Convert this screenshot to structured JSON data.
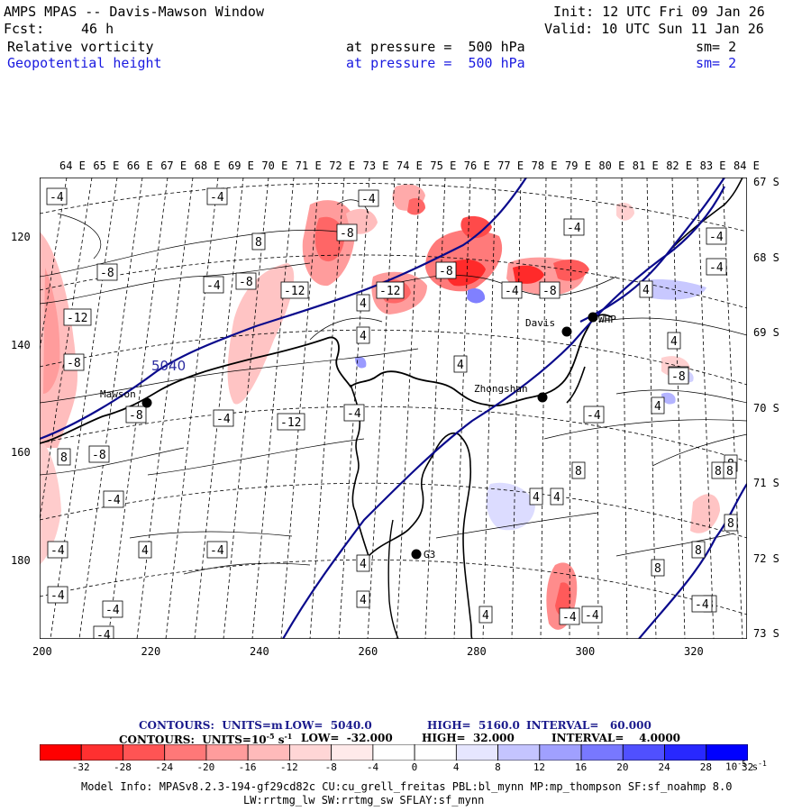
{
  "header": {
    "title": "AMPS MPAS -- Davis-Mawson Window",
    "init": "Init: 12 UTC Fri 09 Jan 26",
    "forecast_label": "Fcst:",
    "forecast_hours": "46 h",
    "valid": "Valid: 10 UTC Sun 11 Jan 26",
    "fields": [
      {
        "name": "Relative vorticity",
        "pressure": "at pressure =  500 hPa",
        "smooth": "sm= 2",
        "color": "#000000"
      },
      {
        "name": "Geopotential height",
        "pressure": "at pressure =  500 hPa",
        "smooth": "sm= 2",
        "color": "#1a1ae0"
      }
    ]
  },
  "map": {
    "longitude_labels": [
      "64 E",
      "65 E",
      "66 E",
      "67 E",
      "68 E",
      "69 E",
      "70 E",
      "71 E",
      "72 E",
      "73 E",
      "74 E",
      "75 E",
      "76 E",
      "77 E",
      "78 E",
      "79 E",
      "80 E",
      "81 E",
      "82 E",
      "83 E",
      "84 E"
    ],
    "latitude_labels": [
      "67 S",
      "68 S",
      "69 S",
      "70 S",
      "71 S",
      "72 S",
      "73 S"
    ],
    "y_ticks": [
      "120",
      "140",
      "160",
      "180"
    ],
    "x_ticks": [
      "200",
      "220",
      "240",
      "260",
      "280",
      "300",
      "320"
    ],
    "stations": [
      {
        "name": "Davis"
      },
      {
        "name": "WHP"
      },
      {
        "name": "Zhongshan"
      },
      {
        "name": "Mawson"
      },
      {
        "name": "G3"
      }
    ],
    "height_contour_label": "5040",
    "vorticity_labels": [
      "-4",
      "-4",
      "-4",
      "-4",
      "-8",
      "-8",
      "-8",
      "-12",
      "-12",
      "-8",
      "-8",
      "-12",
      "-4",
      "-8",
      "-8",
      "-8",
      "-4",
      "-4",
      "-4",
      "-8",
      "-4",
      "-8",
      "-4",
      "-4",
      "-4",
      "-4",
      "-4",
      "-4",
      "-4",
      "-4",
      "-12",
      "-4",
      "4",
      "4",
      "4",
      "4",
      "4",
      "4",
      "4",
      "4",
      "4",
      "4",
      "4",
      "4",
      "8",
      "8",
      "8",
      "8",
      "8",
      "8",
      "8",
      "8",
      "8",
      "-4",
      "8",
      "-4",
      "4",
      "4",
      "4",
      "-8",
      "-4",
      "-8",
      "-4",
      "-4",
      "8",
      "4",
      "4",
      "4",
      "-4",
      "-4"
    ]
  },
  "legend": {
    "height_contours": {
      "label": "CONTOURS:  UNITS=m",
      "low": "LOW=  5040.0",
      "high": "HIGH=  5160.0",
      "interval": "INTERVAL=   60.000"
    },
    "vort_contours": {
      "label": "CONTOURS:  UNITS=10",
      "exp": "-5",
      "unit_tail": "s",
      "unit_exp": "-1",
      "low": "LOW=  -32.000",
      "high": "HIGH=  32.000",
      "interval": "INTERVAL=    4.0000"
    },
    "colorbar_ticks": [
      "-32",
      "-28",
      "-24",
      "-20",
      "-16",
      "-12",
      "-8",
      "-4",
      "0",
      "4",
      "8",
      "12",
      "16",
      "20",
      "24",
      "28",
      "32"
    ],
    "colorbar_unit": "10",
    "colorbar_unit_exp": "-5",
    "colorbar_unit_tail": "s",
    "colorbar_unit_tail_exp": "-1",
    "colorbar_colors": [
      "#ff0000",
      "#ff3030",
      "#ff5454",
      "#ff7878",
      "#ff9c9c",
      "#ffbaba",
      "#ffd6d6",
      "#ffeaea",
      "#ffffff",
      "#ffffff",
      "#e6e6ff",
      "#c4c4ff",
      "#a0a0ff",
      "#7878ff",
      "#5050ff",
      "#2828ff",
      "#0000ff"
    ]
  },
  "footer": {
    "line1": "Model Info: MPASv8.2.3-194-gf29cd82c CU:cu_grell_freitas PBL:bl_mynn MP:mp_thompson SF:sf_noahmp 8.0",
    "line2": "LW:rrtmg_lw SW:rrtmg_sw SFLAY:sf_mynn"
  }
}
